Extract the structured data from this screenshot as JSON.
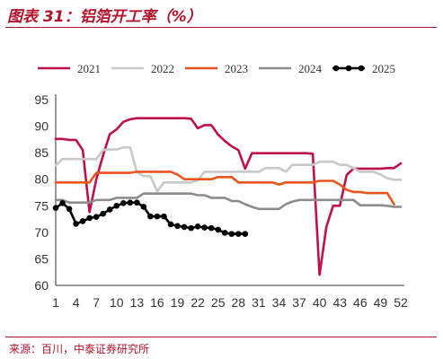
{
  "title": "图表 31：铝箔开工率（%）",
  "source": "来源：百川，中泰证券研究所",
  "chart_data": {
    "type": "line",
    "xlim": [
      1,
      52
    ],
    "ylim": [
      60,
      95
    ],
    "yticks": [
      60,
      65,
      70,
      75,
      80,
      85,
      90,
      95
    ],
    "xticks": [
      1,
      4,
      7,
      10,
      13,
      16,
      19,
      22,
      25,
      28,
      31,
      34,
      37,
      40,
      43,
      46,
      49,
      52
    ],
    "grid": false,
    "legend": "top",
    "series": [
      {
        "name": "2021",
        "color": "#c0104a",
        "points": [
          [
            1,
            87.6
          ],
          [
            2,
            87.6
          ],
          [
            3,
            87.4
          ],
          [
            4,
            87.4
          ],
          [
            5,
            85.5
          ],
          [
            6,
            73.8
          ],
          [
            7,
            80.0
          ],
          [
            8,
            84.5
          ],
          [
            9,
            88.5
          ],
          [
            10,
            89.4
          ],
          [
            11,
            90.8
          ],
          [
            12,
            91.3
          ],
          [
            13,
            91.5
          ],
          [
            14,
            91.5
          ],
          [
            15,
            91.5
          ],
          [
            16,
            91.5
          ],
          [
            17,
            91.5
          ],
          [
            18,
            91.5
          ],
          [
            19,
            91.5
          ],
          [
            20,
            91.5
          ],
          [
            21,
            91.4
          ],
          [
            22,
            89.6
          ],
          [
            23,
            90.2
          ],
          [
            24,
            90.2
          ],
          [
            25,
            88.4
          ],
          [
            26,
            87.2
          ],
          [
            27,
            86.2
          ],
          [
            28,
            85.5
          ],
          [
            29,
            82.0
          ],
          [
            30,
            84.9
          ],
          [
            31,
            84.9
          ],
          [
            32,
            84.9
          ],
          [
            33,
            84.9
          ],
          [
            34,
            84.9
          ],
          [
            35,
            84.9
          ],
          [
            36,
            84.9
          ],
          [
            37,
            84.9
          ],
          [
            38,
            84.9
          ],
          [
            39,
            84.8
          ],
          [
            40,
            62.0
          ],
          [
            41,
            71.0
          ],
          [
            42,
            75.0
          ],
          [
            43,
            75.0
          ],
          [
            44,
            80.8
          ],
          [
            45,
            82.0
          ],
          [
            46,
            82.0
          ],
          [
            47,
            82.0
          ],
          [
            48,
            82.0
          ],
          [
            49,
            82.0
          ],
          [
            50,
            82.1
          ],
          [
            51,
            82.1
          ],
          [
            52,
            83.0
          ]
        ]
      },
      {
        "name": "2022",
        "color": "#c8c8c8",
        "points": [
          [
            1,
            82.6
          ],
          [
            2,
            83.8
          ],
          [
            3,
            83.8
          ],
          [
            4,
            83.8
          ],
          [
            5,
            83.8
          ],
          [
            6,
            83.8
          ],
          [
            7,
            83.8
          ],
          [
            8,
            85.5
          ],
          [
            9,
            85.6
          ],
          [
            10,
            85.6
          ],
          [
            11,
            86.0
          ],
          [
            12,
            86.0
          ],
          [
            13,
            81.3
          ],
          [
            14,
            80.6
          ],
          [
            15,
            80.6
          ],
          [
            16,
            77.7
          ],
          [
            17,
            79.4
          ],
          [
            18,
            79.4
          ],
          [
            19,
            79.4
          ],
          [
            20,
            79.4
          ],
          [
            21,
            79.4
          ],
          [
            22,
            79.8
          ],
          [
            23,
            81.4
          ],
          [
            24,
            81.4
          ],
          [
            25,
            81.4
          ],
          [
            26,
            81.4
          ],
          [
            27,
            81.4
          ],
          [
            28,
            81.4
          ],
          [
            29,
            81.4
          ],
          [
            30,
            81.4
          ],
          [
            31,
            81.4
          ],
          [
            32,
            82.1
          ],
          [
            33,
            82.1
          ],
          [
            34,
            82.1
          ],
          [
            35,
            81.4
          ],
          [
            36,
            82.7
          ],
          [
            37,
            82.7
          ],
          [
            38,
            82.7
          ],
          [
            39,
            82.7
          ],
          [
            40,
            83.3
          ],
          [
            41,
            83.3
          ],
          [
            42,
            83.3
          ],
          [
            43,
            82.7
          ],
          [
            44,
            82.7
          ],
          [
            45,
            82.1
          ],
          [
            46,
            81.4
          ],
          [
            47,
            81.4
          ],
          [
            48,
            81.4
          ],
          [
            49,
            80.9
          ],
          [
            50,
            80.2
          ],
          [
            51,
            79.9
          ],
          [
            52,
            79.9
          ]
        ]
      },
      {
        "name": "2023",
        "color": "#e8541e",
        "points": [
          [
            1,
            79.4
          ],
          [
            2,
            79.4
          ],
          [
            3,
            79.4
          ],
          [
            4,
            79.4
          ],
          [
            5,
            79.4
          ],
          [
            6,
            79.4
          ],
          [
            7,
            81.2
          ],
          [
            8,
            81.2
          ],
          [
            9,
            81.2
          ],
          [
            10,
            81.2
          ],
          [
            11,
            81.2
          ],
          [
            12,
            81.2
          ],
          [
            13,
            81.4
          ],
          [
            14,
            81.4
          ],
          [
            15,
            81.4
          ],
          [
            16,
            81.4
          ],
          [
            17,
            81.4
          ],
          [
            18,
            81.4
          ],
          [
            19,
            80.9
          ],
          [
            20,
            80.0
          ],
          [
            21,
            80.0
          ],
          [
            22,
            80.0
          ],
          [
            23,
            80.0
          ],
          [
            24,
            80.0
          ],
          [
            25,
            80.4
          ],
          [
            26,
            80.4
          ],
          [
            27,
            80.4
          ],
          [
            28,
            79.4
          ],
          [
            29,
            79.4
          ],
          [
            30,
            79.4
          ],
          [
            31,
            79.4
          ],
          [
            32,
            79.4
          ],
          [
            33,
            79.4
          ],
          [
            34,
            79.0
          ],
          [
            35,
            79.4
          ],
          [
            36,
            79.4
          ],
          [
            37,
            79.4
          ],
          [
            38,
            79.4
          ],
          [
            39,
            79.4
          ],
          [
            40,
            79.7
          ],
          [
            41,
            79.7
          ],
          [
            42,
            79.7
          ],
          [
            43,
            79.0
          ],
          [
            44,
            78.0
          ],
          [
            45,
            77.6
          ],
          [
            46,
            77.6
          ],
          [
            47,
            77.4
          ],
          [
            48,
            77.4
          ],
          [
            49,
            77.4
          ],
          [
            50,
            77.4
          ],
          [
            51,
            75.3
          ]
        ]
      },
      {
        "name": "2024",
        "color": "#8c8c8c",
        "points": [
          [
            1,
            76.1
          ],
          [
            2,
            76.1
          ],
          [
            3,
            75.6
          ],
          [
            4,
            75.6
          ],
          [
            5,
            75.6
          ],
          [
            6,
            75.6
          ],
          [
            7,
            76.1
          ],
          [
            8,
            76.1
          ],
          [
            9,
            76.1
          ],
          [
            10,
            76.5
          ],
          [
            11,
            76.5
          ],
          [
            12,
            76.5
          ],
          [
            13,
            76.5
          ],
          [
            14,
            77.3
          ],
          [
            15,
            77.3
          ],
          [
            16,
            77.3
          ],
          [
            17,
            77.3
          ],
          [
            18,
            77.3
          ],
          [
            19,
            77.3
          ],
          [
            20,
            77.3
          ],
          [
            21,
            77.3
          ],
          [
            22,
            77.0
          ],
          [
            23,
            77.0
          ],
          [
            24,
            76.5
          ],
          [
            25,
            76.5
          ],
          [
            26,
            76.5
          ],
          [
            27,
            75.9
          ],
          [
            28,
            75.9
          ],
          [
            29,
            75.3
          ],
          [
            30,
            74.8
          ],
          [
            31,
            74.4
          ],
          [
            32,
            74.4
          ],
          [
            33,
            74.4
          ],
          [
            34,
            74.4
          ],
          [
            35,
            75.3
          ],
          [
            36,
            75.8
          ],
          [
            37,
            76.1
          ],
          [
            38,
            76.1
          ],
          [
            39,
            76.1
          ],
          [
            40,
            76.1
          ],
          [
            41,
            76.1
          ],
          [
            42,
            76.1
          ],
          [
            43,
            76.1
          ],
          [
            44,
            76.1
          ],
          [
            45,
            76.1
          ],
          [
            46,
            75.1
          ],
          [
            47,
            75.1
          ],
          [
            48,
            75.1
          ],
          [
            49,
            75.1
          ],
          [
            50,
            75.0
          ],
          [
            51,
            74.8
          ],
          [
            52,
            74.8
          ]
        ]
      },
      {
        "name": "2025",
        "color": "#000000",
        "markers": true,
        "points": [
          [
            1,
            74.6
          ],
          [
            2,
            75.5
          ],
          [
            3,
            74.4
          ],
          [
            4,
            71.6
          ],
          [
            5,
            72.1
          ],
          [
            6,
            72.7
          ],
          [
            7,
            72.9
          ],
          [
            8,
            73.5
          ],
          [
            9,
            74.3
          ],
          [
            10,
            75.0
          ],
          [
            11,
            75.5
          ],
          [
            12,
            75.6
          ],
          [
            13,
            75.6
          ],
          [
            14,
            74.8
          ],
          [
            15,
            73.0
          ],
          [
            16,
            73.0
          ],
          [
            17,
            73.0
          ],
          [
            18,
            71.5
          ],
          [
            19,
            71.2
          ],
          [
            20,
            71.0
          ],
          [
            21,
            70.8
          ],
          [
            22,
            71.1
          ],
          [
            23,
            70.9
          ],
          [
            24,
            70.8
          ],
          [
            25,
            70.5
          ],
          [
            26,
            69.9
          ],
          [
            27,
            69.7
          ],
          [
            28,
            69.7
          ],
          [
            29,
            69.7
          ]
        ]
      }
    ]
  }
}
